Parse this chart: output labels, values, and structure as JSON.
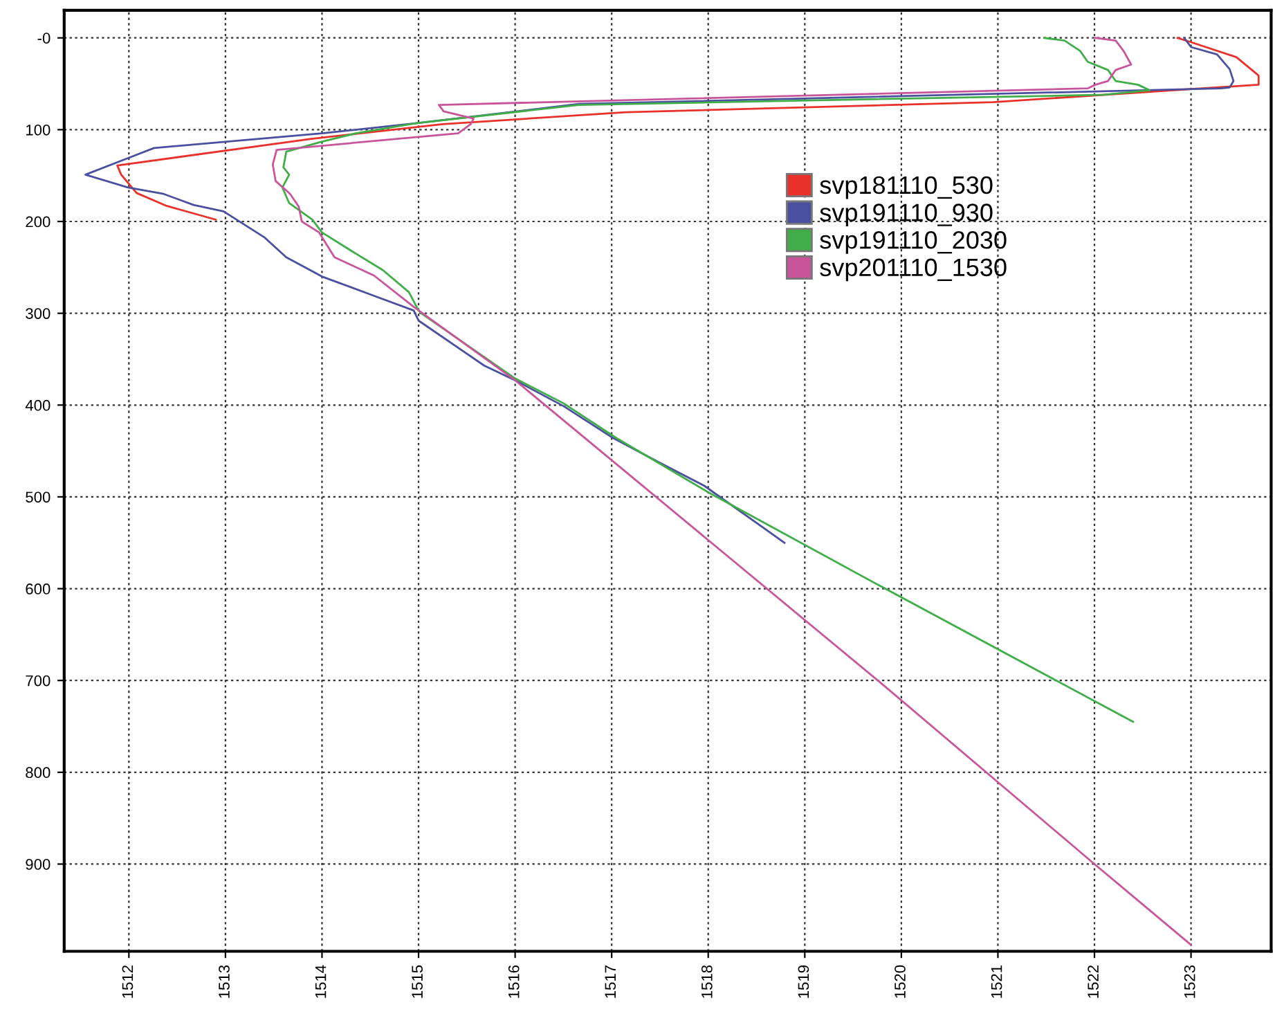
{
  "chart_data": {
    "type": "line",
    "xlim": [
      1511.33,
      1523.83
    ],
    "ylim": [
      995,
      -30
    ],
    "xticks": [
      1512,
      1513,
      1514,
      1515,
      1516,
      1517,
      1518,
      1519,
      1520,
      1521,
      1522,
      1523
    ],
    "yticks": [
      {
        "value": 0,
        "label": "-0"
      },
      100,
      200,
      300,
      400,
      500,
      600,
      700,
      800,
      900
    ],
    "grid": true,
    "legend": "top right",
    "line_style": "solid",
    "marker": "none",
    "series": [
      {
        "name": "svp181110_530",
        "color": "#e8312a",
        "x": [
          1522.86,
          1522.98,
          1523.47,
          1523.7,
          1523.7,
          1520.95,
          1517.15,
          1515.25,
          1513.89,
          1511.88,
          1511.92,
          1512.08,
          1512.39,
          1512.9
        ],
        "values": [
          0,
          4,
          21,
          41,
          51,
          70,
          81,
          94,
          110,
          139,
          149,
          169,
          183,
          198
        ]
      },
      {
        "name": "svp191110_930",
        "color": "#4a4fa0",
        "x": [
          1522.93,
          1523.0,
          1523.27,
          1523.4,
          1523.44,
          1523.4,
          1523.31,
          1516.66,
          1514.97,
          1514.0,
          1512.26,
          1511.99,
          1511.55,
          1511.99,
          1512.36,
          1512.67,
          1512.98,
          1513.4,
          1513.63,
          1514.0,
          1514.54,
          1514.95,
          1515.0,
          1515.68,
          1516.0,
          1516.5,
          1517.0,
          1517.5,
          1517.96,
          1518.79
        ],
        "values": [
          0,
          10,
          18,
          34,
          47,
          54,
          55,
          72,
          93,
          104,
          120,
          131,
          149,
          163,
          170,
          182,
          189,
          217,
          239,
          260,
          281,
          297,
          308,
          357,
          373,
          401,
          435,
          463,
          488,
          550
        ]
      },
      {
        "name": "svp191110_2030",
        "color": "#3fae49",
        "x": [
          1521.48,
          1521.69,
          1521.85,
          1521.93,
          1522.14,
          1522.22,
          1522.45,
          1522.57,
          1522.1,
          1516.66,
          1514.97,
          1514.35,
          1514.0,
          1513.63,
          1513.6,
          1513.66,
          1513.59,
          1513.66,
          1513.9,
          1514.0,
          1514.35,
          1514.63,
          1514.9,
          1515.0,
          1515.04,
          1516.0,
          1516.5,
          1517.05,
          1518.0,
          1519.78,
          1522.4
        ],
        "values": [
          0,
          3,
          14,
          26,
          35,
          47,
          51,
          57,
          62,
          73,
          93,
          104,
          113,
          124,
          141,
          149,
          163,
          180,
          198,
          212,
          235,
          253,
          277,
          297,
          301,
          371,
          398,
          436,
          495,
          597,
          745
        ]
      },
      {
        "name": "svp201110_1530",
        "color": "#c8559a",
        "x": [
          1522.01,
          1522.22,
          1522.3,
          1522.38,
          1522.22,
          1522.14,
          1522.01,
          1521.93,
          1515.21,
          1515.26,
          1515.57,
          1515.54,
          1515.41,
          1513.53,
          1513.49,
          1513.52,
          1513.67,
          1513.76,
          1513.79,
          1513.97,
          1514.13,
          1514.54,
          1514.95,
          1516.0,
          1519.78,
          1522.0,
          1523.0
        ],
        "values": [
          0,
          3,
          14,
          29,
          35,
          47,
          51,
          55,
          73,
          80,
          88,
          94,
          104,
          122,
          138,
          156,
          170,
          184,
          200,
          212,
          239,
          259,
          293,
          373,
          702,
          900,
          988
        ]
      }
    ]
  }
}
